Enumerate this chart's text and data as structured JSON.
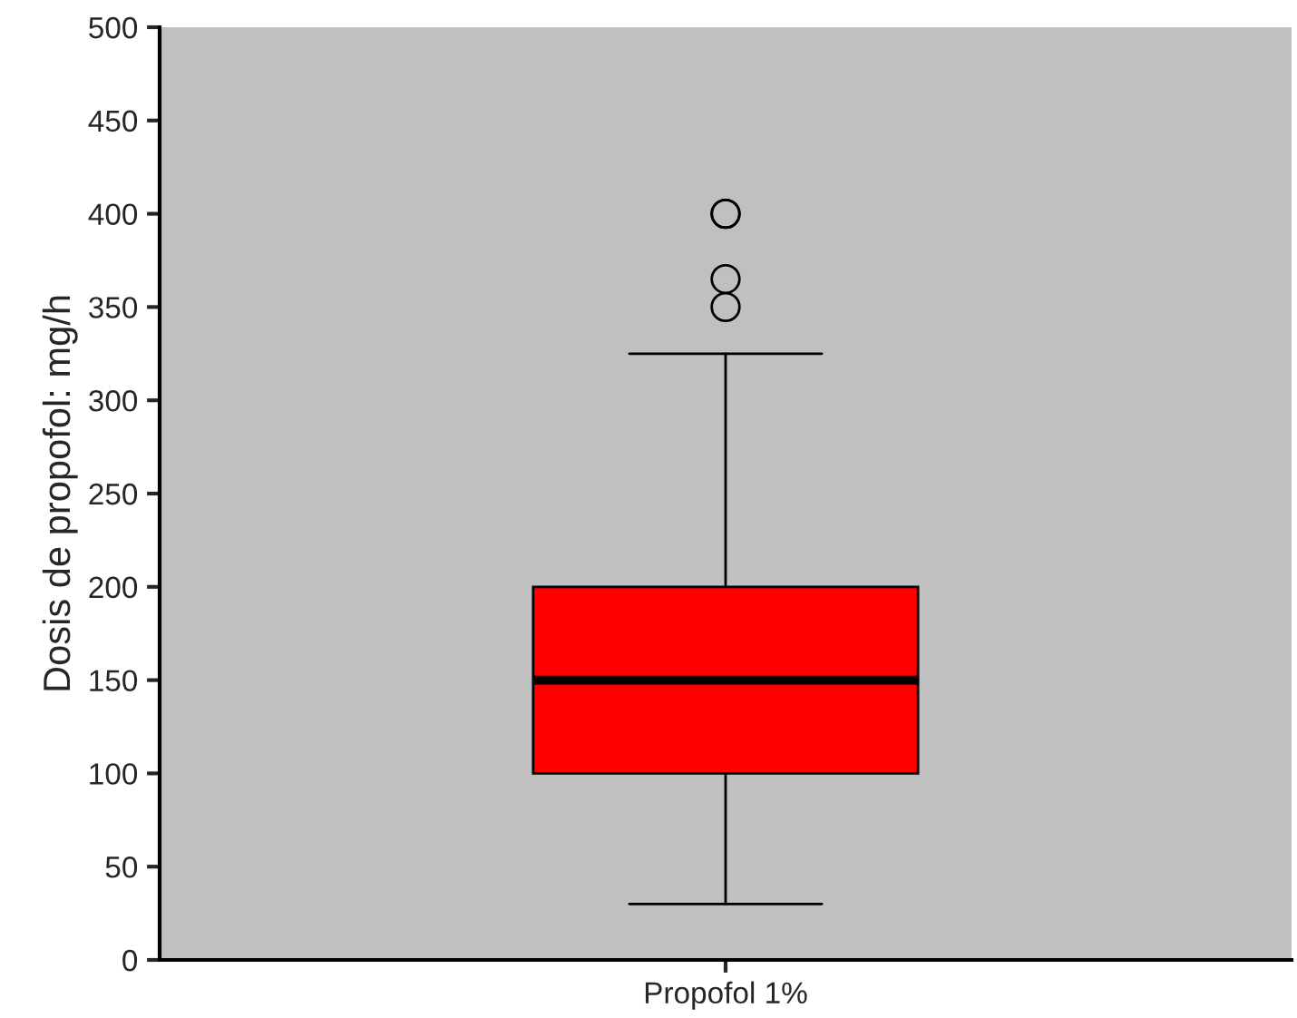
{
  "chart_data": {
    "type": "box",
    "ylabel": "Dosis de propofol: mg/h",
    "categories": [
      "Propofol 1%"
    ],
    "boxes": [
      {
        "low": 30,
        "q1": 100,
        "median": 150,
        "q3": 200,
        "high": 325,
        "outliers": [
          350,
          365,
          400,
          400
        ]
      }
    ],
    "color": "#ff0000",
    "ylim": [
      0,
      500
    ],
    "yticks": [
      0,
      50,
      100,
      150,
      200,
      250,
      300,
      350,
      400,
      450,
      500
    ],
    "grid": false,
    "legend": false
  }
}
